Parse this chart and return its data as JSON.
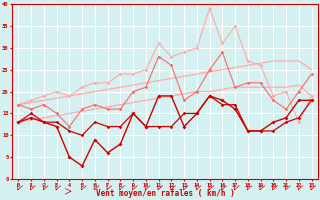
{
  "x": [
    0,
    1,
    2,
    3,
    4,
    5,
    6,
    7,
    8,
    9,
    10,
    11,
    12,
    13,
    14,
    15,
    16,
    17,
    18,
    19,
    20,
    21,
    22,
    23
  ],
  "line_spiky_dark": [
    13,
    14,
    13,
    12,
    5,
    3,
    9,
    6,
    8,
    15,
    12,
    19,
    19,
    12,
    15,
    19,
    18,
    16,
    11,
    11,
    13,
    14,
    18,
    18
  ],
  "line_flat_dark": [
    13,
    15,
    13,
    13,
    11,
    10,
    13,
    12,
    12,
    15,
    12,
    12,
    12,
    15,
    15,
    19,
    17,
    17,
    11,
    11,
    11,
    13,
    14,
    18
  ],
  "line_medium_pink": [
    17,
    16,
    17,
    15,
    12,
    16,
    17,
    16,
    16,
    20,
    21,
    28,
    26,
    18,
    20,
    25,
    29,
    21,
    22,
    22,
    18,
    16,
    20,
    24
  ],
  "line_upper_straight": [
    17.0,
    17.5,
    18.0,
    18.5,
    19.0,
    19.5,
    20.0,
    20.5,
    21.0,
    21.5,
    22.0,
    22.5,
    23.0,
    23.5,
    24.0,
    24.5,
    25.0,
    25.5,
    26.0,
    26.5,
    27.0,
    27.0,
    27.0,
    25.0
  ],
  "line_lower_straight": [
    13.0,
    13.5,
    14.0,
    14.5,
    15.0,
    15.5,
    16.0,
    16.5,
    17.0,
    17.5,
    18.0,
    18.5,
    19.0,
    19.5,
    20.0,
    20.0,
    20.5,
    21.0,
    21.0,
    21.0,
    21.0,
    21.0,
    21.5,
    19.0
  ],
  "line_spiky_pink": [
    17,
    18,
    19,
    20,
    19,
    21,
    22,
    22,
    24,
    24,
    25,
    31,
    28,
    29,
    30,
    39,
    31,
    35,
    27,
    26,
    19,
    20,
    13,
    19
  ],
  "color_dark_red": "#cc0000",
  "color_light_pink": "#ffaaaa",
  "color_medium_pink": "#ff6666",
  "xlabel": "Vent moyen/en rafales ( km/h )",
  "ylim": [
    0,
    40
  ],
  "xlim": [
    -0.5,
    23.5
  ],
  "yticks": [
    0,
    5,
    10,
    15,
    20,
    25,
    30,
    35,
    40
  ],
  "xticks": [
    0,
    1,
    2,
    3,
    4,
    5,
    6,
    7,
    8,
    9,
    10,
    11,
    12,
    13,
    14,
    15,
    16,
    17,
    18,
    19,
    20,
    21,
    22,
    23
  ],
  "bg_color": "#d4f0f0",
  "grid_color": "#b0d8d8"
}
